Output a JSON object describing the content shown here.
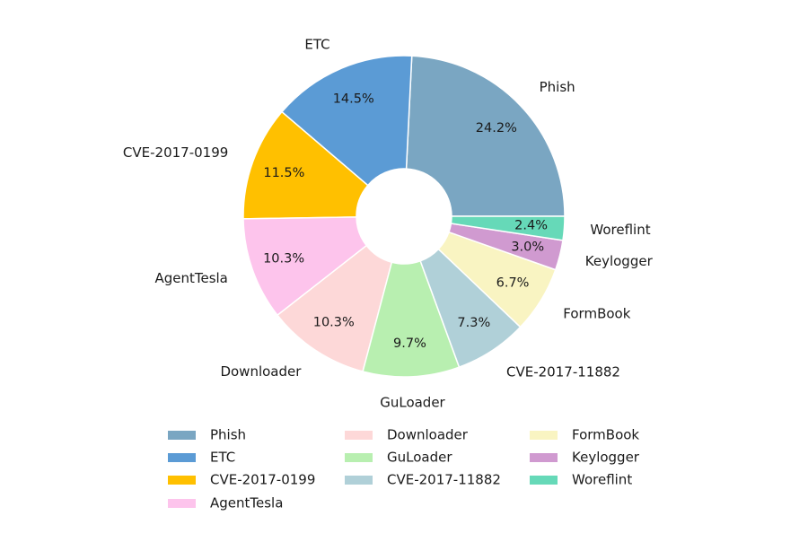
{
  "chart_data": {
    "type": "pie",
    "variant": "donut",
    "title": "",
    "categories": [
      "Phish",
      "ETC",
      "CVE-2017-0199",
      "AgentTesla",
      "Downloader",
      "GuLoader",
      "CVE-2017-11882",
      "FormBook",
      "Keylogger",
      "Woreflint"
    ],
    "values": [
      24.2,
      14.5,
      11.5,
      10.3,
      10.3,
      9.7,
      7.3,
      6.7,
      3.0,
      2.4
    ],
    "value_labels": [
      "24.2%",
      "14.5%",
      "11.5%",
      "10.3%",
      "10.3%",
      "9.7%",
      "7.3%",
      "6.7%",
      "3.0%",
      "2.4%"
    ],
    "colors": [
      "#7aa6c2",
      "#5b9bd5",
      "#ffc000",
      "#fdc4ec",
      "#fdd8d8",
      "#b8efb0",
      "#b0d0d8",
      "#f9f4c2",
      "#d09ad0",
      "#66d9b8"
    ],
    "start_angle_deg": 0,
    "direction": "counterclockwise",
    "legend": {
      "position": "bottom",
      "columns": 3
    }
  }
}
